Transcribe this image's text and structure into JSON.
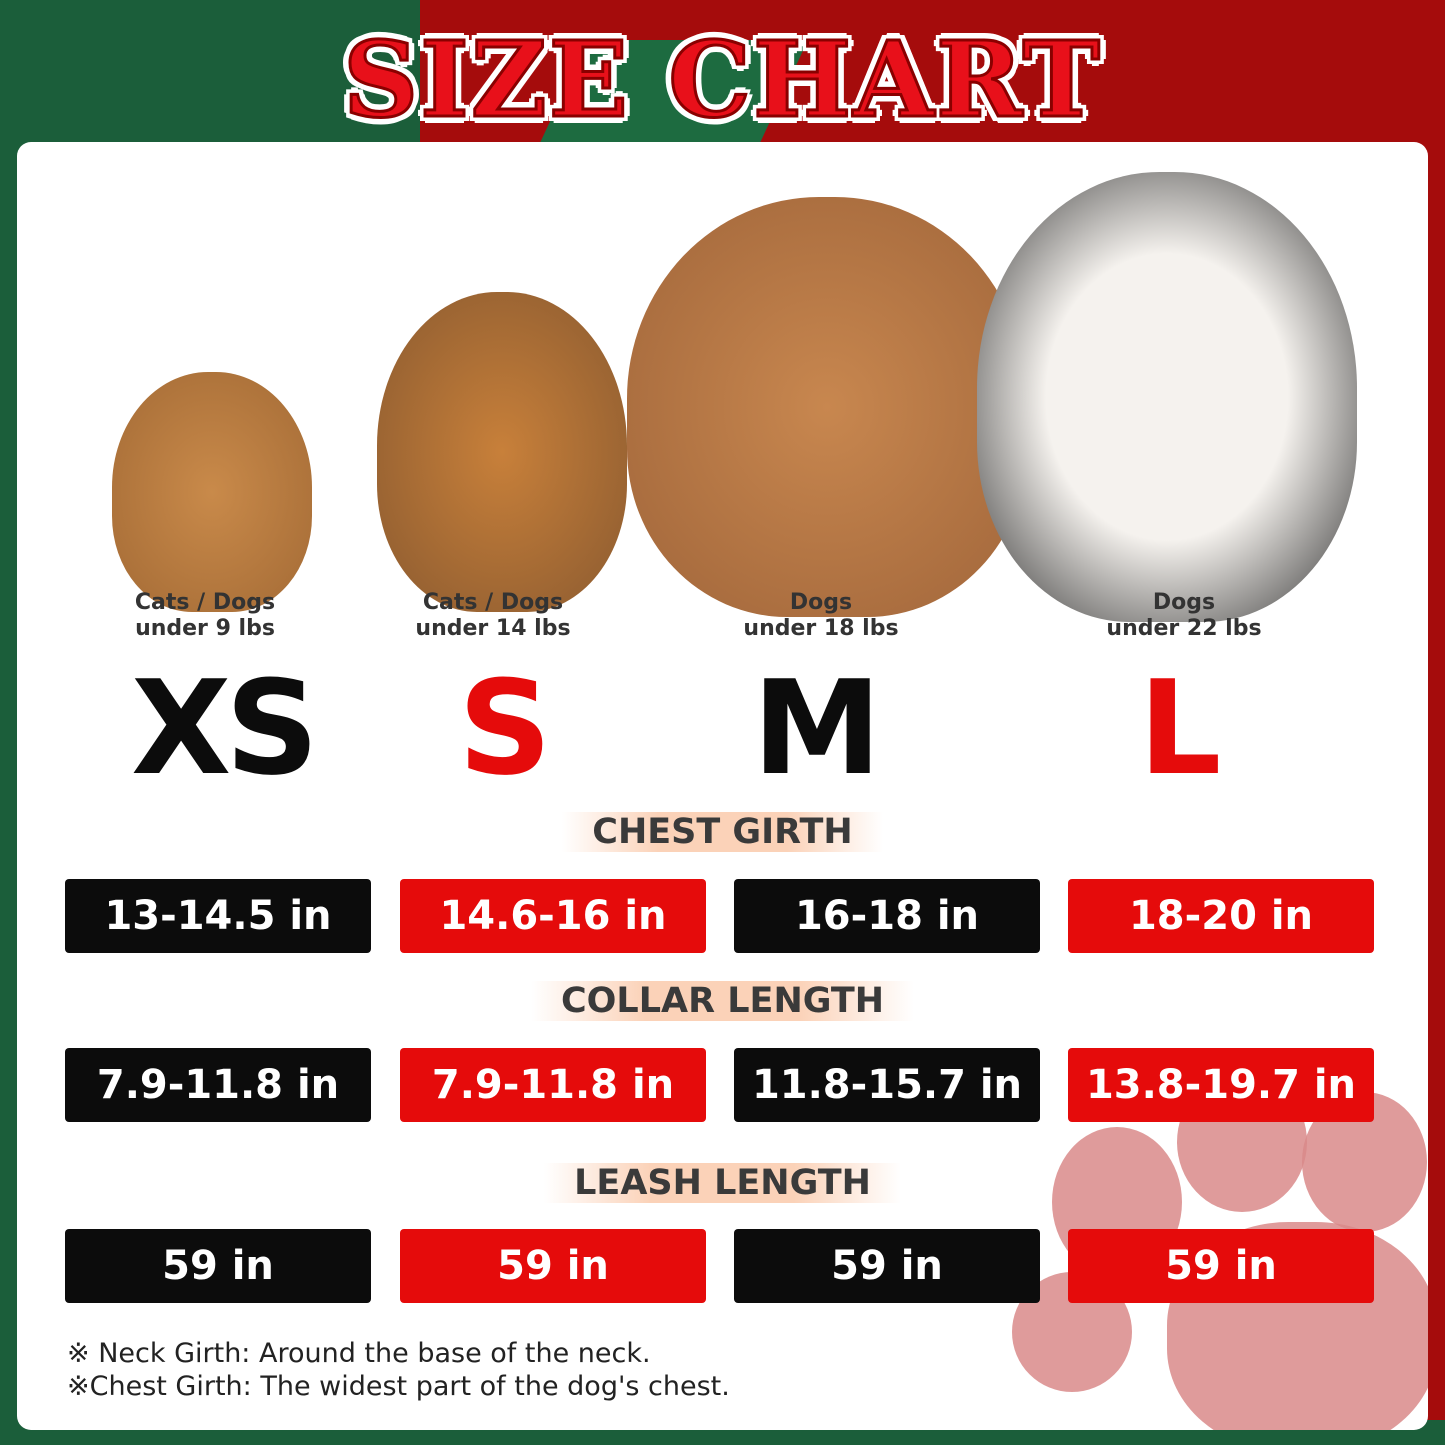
{
  "title": "SIZE CHART",
  "colors": {
    "red": "#e50b0b",
    "black": "#0c0c0c",
    "green": "#1b5e3a",
    "background_red": "#a50c0c"
  },
  "sizes": [
    {
      "label": "XS",
      "color": "#0c0c0c",
      "caption1": "Cats / Dogs",
      "caption2": "under 9 lbs",
      "chest": "13-14.5 in",
      "collar": "7.9-11.8 in",
      "leash": "59 in"
    },
    {
      "label": "S",
      "color": "#e50b0b",
      "caption1": "Cats / Dogs",
      "caption2": "under 14 lbs",
      "chest": "14.6-16 in",
      "collar": "7.9-11.8 in",
      "leash": "59 in"
    },
    {
      "label": "M",
      "color": "#0c0c0c",
      "caption1": "Dogs",
      "caption2": "under 18 lbs",
      "chest": "16-18 in",
      "collar": "11.8-15.7 in",
      "leash": "59 in"
    },
    {
      "label": "L",
      "color": "#e50b0b",
      "caption1": "Dogs",
      "caption2": "under 22 lbs",
      "chest": "18-20 in",
      "collar": "13.8-19.7 in",
      "leash": "59 in"
    }
  ],
  "headers": {
    "chest": "CHEST GIRTH",
    "collar": "COLLAR LENGTH",
    "leash": "LEASH LENGTH"
  },
  "notes": [
    "※ Neck Girth: Around the base of the neck.",
    "※Chest Girth: The widest part of the dog's chest."
  ]
}
